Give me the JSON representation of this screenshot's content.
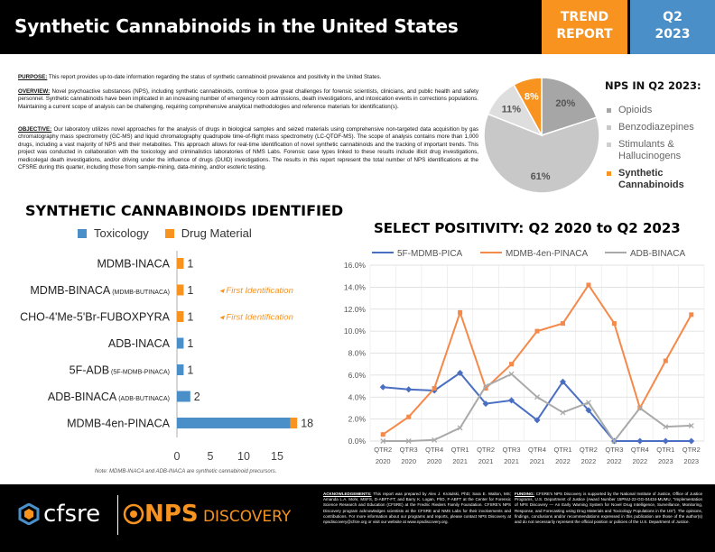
{
  "header": {
    "title": "Synthetic Cannabinoids in the United States",
    "trend_line1": "TREND",
    "trend_line2": "REPORT",
    "quarter_line1": "Q2",
    "quarter_line2": "2023"
  },
  "intro": {
    "purpose_label": "PURPOSE:",
    "purpose_text": " This report provides up-to-date information regarding the status of synthetic cannabinoid prevalence and positivity in the United States.",
    "overview_label": "OVERVIEW:",
    "overview_text": " Novel psychoactive substances (NPS), including synthetic cannabinoids, continue to pose great challenges for forensic scientists, clinicians, and public health and safety personnel. Synthetic cannabinoids have been implicated in an increasing number of emergency room admissions, death investigations, and intoxication events in corrections populations. Maintaining a current scope of analysis can be challenging, requiring comprehensive analytical methodologies and reference materials for identification(s).",
    "objective_label": "OBJECTIVE:",
    "objective_text": " Our laboratory utilizes novel approaches for the analysis of drugs in biological samples and seized materials using comprehensive non-targeted data acquisition by gas chromatography mass spectrometry (GC-MS) and liquid chromatography quadrupole time-of-flight mass spectrometry (LC-QTOF-MS). The scope of analysis contains more than 1,000 drugs, including a vast majority of NPS and their metabolites. This approach allows for real-time identification of novel synthetic cannabinoids and the tracking of important trends. This project was conducted in collaboration with the toxicology and criminalistics laboratories of NMS Labs. Forensic case types linked to these results include illicit drug investigations, medicolegal death investigations, and/or driving under the influence of drugs (DUID) investigations. The results in this report represent the total number of NPS identifications at the CFSRE during this quarter, including those from sample-mining, data-mining, and/or esoteric testing."
  },
  "footer": {
    "logo_cfsre": "cfsre",
    "logo_nps": "NPS",
    "logo_discovery": " DISCOVERY",
    "ack_label": "ACKNOWLEDGEMENTS:",
    "ack_text": " This report was prepared by Alex J. Krotulski, PhD; Sara E. Walton, MS; Amanda L.A. Mohr, MSFS, D-ABFT-FT; and Barry K. Logan, PhD, F-ABFT at the Center for Forensic Science Research and Education (CFSRE) at the Fredric Rieders Family Foundation. CFSRE's NPS Discovery program acknowledges scientists at the CFSRE and NMS Labs for their involvements and contributions. For more information about our programs and reports, please contact NPS Discovery at npsdiscovery@cfsre.org or visit our website at www.npsdiscovery.org.",
    "funding_label": "FUNDING:",
    "funding_text": " CFSRE's NPS Discovery is supported by the National Institute of Justice, Office of Justice Programs, U.S. Department of Justice (Award Number 15PNIJ-22-GG-04434-MUMU, \"Implementation of NPS Discovery — An Early Warning System for Novel Drug Intelligence, Surveillance, Monitoring, Response, and Forecasting using Drug Materials and Toxicology Populations in the US\"). The opinions, findings, conclusions and/or recommendations expressed in this publication are those of the author(s) and do not necessarily represent the official position or policies of the U.S. Department of Justice."
  },
  "chart_data": [
    {
      "type": "pie",
      "title": "NPS IN Q2 2023:",
      "categories": [
        "Opioids",
        "Benzodiazepines",
        "Stimulants & Hallucinogens",
        "Synthetic Cannabinoids"
      ],
      "values": [
        20,
        61,
        11,
        8
      ],
      "labels": [
        "20%",
        "61%",
        "11%",
        "8%"
      ],
      "colors": [
        "#a6a6a6",
        "#c8c8c8",
        "#dedede",
        "#f7931e"
      ],
      "highlight": "Synthetic Cannabinoids"
    },
    {
      "type": "bar",
      "title": "SYNTHETIC CANNABINOIDS IDENTIFIED",
      "orientation": "horizontal",
      "categories": [
        {
          "name": "MDMB-INACA",
          "sub": ""
        },
        {
          "name": "MDMB-BINACA",
          "sub": " (MDMB-BUTINACA)"
        },
        {
          "name": "CHO-4'Me-5'Br-FUBOXPYRA",
          "sub": ""
        },
        {
          "name": "ADB-INACA",
          "sub": ""
        },
        {
          "name": "5F-ADB",
          "sub": " (5F-MDMB-PINACA)"
        },
        {
          "name": "ADB-BINACA",
          "sub": " (ADB-BUTINACA)"
        },
        {
          "name": "MDMB-4en-PINACA",
          "sub": ""
        }
      ],
      "series": [
        {
          "name": "Toxicology",
          "color": "#4a8fc7",
          "values": [
            0,
            0,
            0,
            1,
            1,
            2,
            17
          ]
        },
        {
          "name": "Drug Material",
          "color": "#f7931e",
          "values": [
            1,
            1,
            1,
            0,
            0,
            0,
            1
          ]
        }
      ],
      "data_labels": [
        "1",
        "1",
        "1",
        "1",
        "1",
        "2",
        "18"
      ],
      "annotations": [
        {
          "category": "MDMB-BINACA",
          "text": "First Identification"
        },
        {
          "category": "CHO-4'Me-5'Br-FUBOXPYRA",
          "text": "First Identification"
        }
      ],
      "xticks": [
        "0",
        "5",
        "10",
        "15"
      ],
      "xlim": [
        0,
        19
      ],
      "note": "Note: MDMB-INACA and ADB-INACA are synthetic cannabinoid precursors."
    },
    {
      "type": "line",
      "title": "SELECT POSITIVITY: Q2 2020 to Q2 2023",
      "x": [
        "QTR2 2020",
        "QTR3 2020",
        "QTR4 2020",
        "QTR1 2021",
        "QTR2 2021",
        "QTR3 2021",
        "QTR4 2021",
        "QTR1 2022",
        "QTR2 2022",
        "QTR3 2022",
        "QTR4 2022",
        "QTR1 2023",
        "QTR2 2023"
      ],
      "xtick_top": [
        "QTR2",
        "QTR3",
        "QTR4",
        "QTR1",
        "QTR2",
        "QTR3",
        "QTR4",
        "QTR1",
        "QTR2",
        "QTR3",
        "QTR4",
        "QTR1",
        "QTR2"
      ],
      "xtick_bottom": [
        "2020",
        "2020",
        "2020",
        "2021",
        "2021",
        "2021",
        "2021",
        "2022",
        "2022",
        "2022",
        "2022",
        "2023",
        "2023"
      ],
      "yticks": [
        "0.0%",
        "2.0%",
        "4.0%",
        "6.0%",
        "8.0%",
        "10.0%",
        "12.0%",
        "14.0%",
        "16.0%"
      ],
      "ylim": [
        0,
        16
      ],
      "grid": true,
      "legend": "top",
      "series": [
        {
          "name": "5F-MDMB-PICA",
          "color": "#4a6fc2",
          "marker": "diamond",
          "values": [
            4.9,
            4.7,
            4.6,
            6.2,
            3.4,
            3.7,
            1.9,
            5.4,
            2.8,
            0.0,
            0.0,
            0.0,
            0.0
          ]
        },
        {
          "name": "MDMB-4en-PINACA",
          "color": "#f5894a",
          "marker": "square",
          "values": [
            0.6,
            2.2,
            4.8,
            11.7,
            4.8,
            7.0,
            10.0,
            10.7,
            14.2,
            10.7,
            3.0,
            7.3,
            11.5
          ]
        },
        {
          "name": "ADB-BINACA",
          "color": "#a9a9a9",
          "marker": "x",
          "values": [
            0.0,
            0.0,
            0.1,
            1.2,
            5.0,
            6.1,
            4.0,
            2.6,
            3.5,
            0.0,
            3.0,
            1.3,
            1.4
          ]
        }
      ]
    }
  ]
}
